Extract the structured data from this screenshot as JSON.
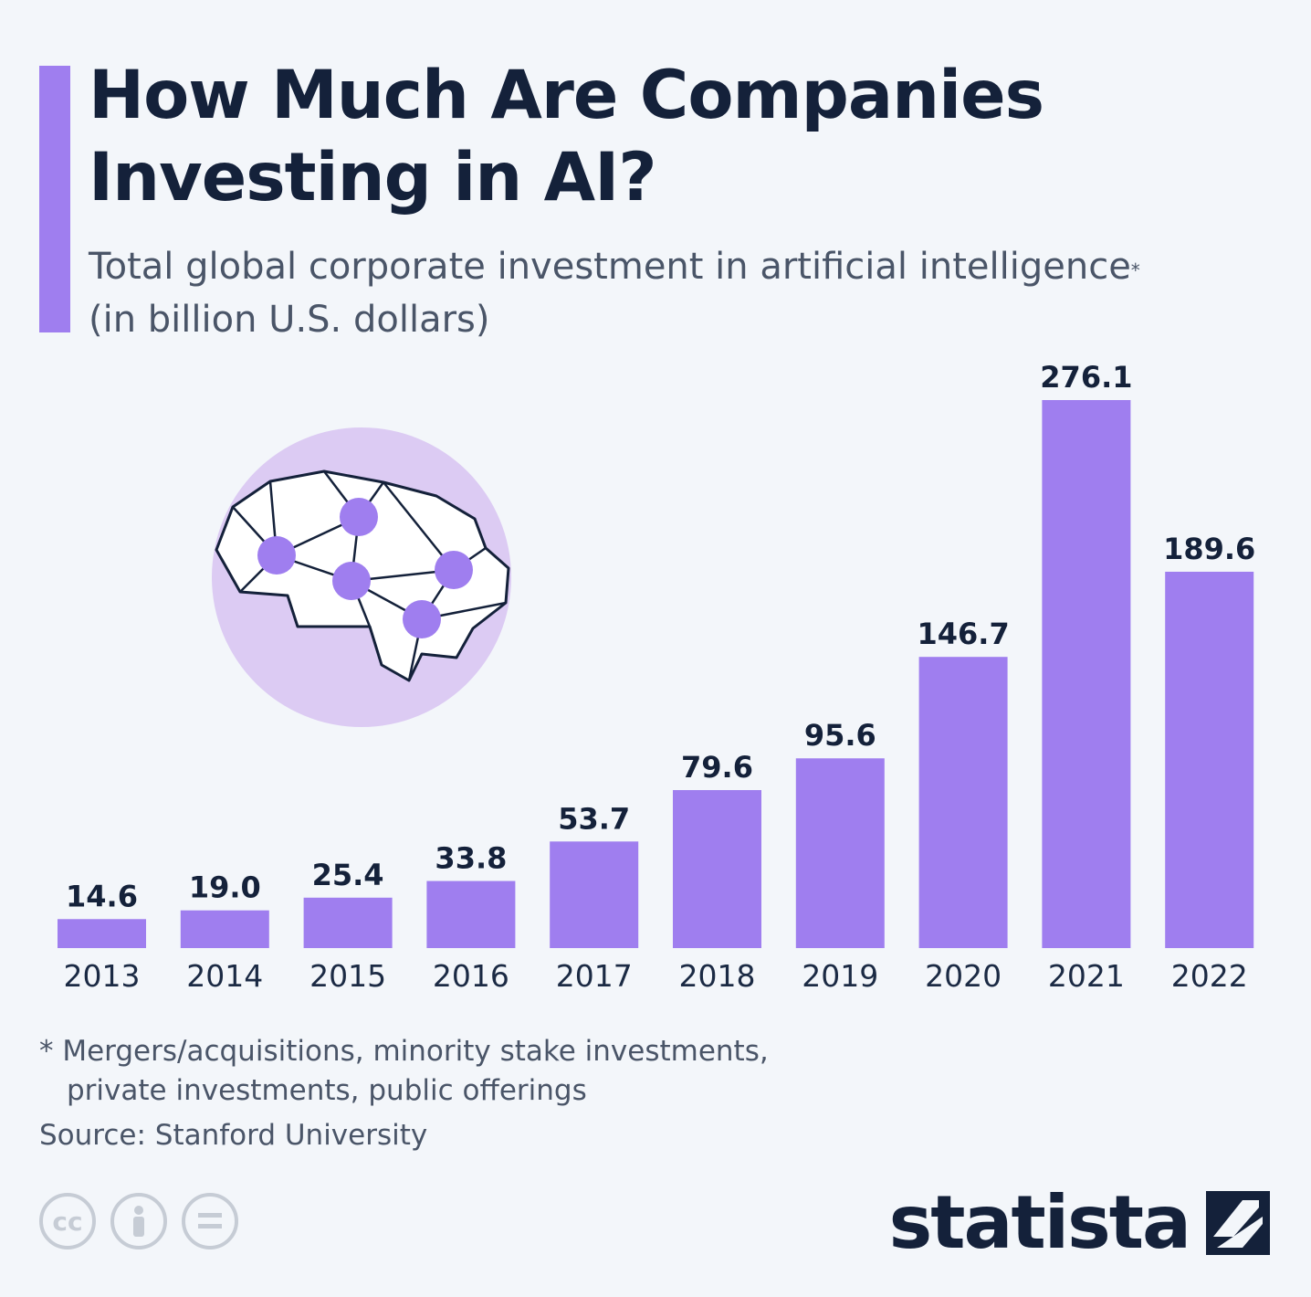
{
  "title": "How Much Are Companies Investing in AI?",
  "subtitle_line1": "Total global corporate investment in artificial intelligence",
  "subtitle_asterisk": "*",
  "subtitle_line2": "(in billion U.S. dollars)",
  "footnote_line1": "* Mergers/acquisitions, minority stake investments,",
  "footnote_line2": "private investments, public offerings",
  "source": "Source: Stanford University",
  "brand": "statista",
  "license_icons": [
    "cc-icon",
    "attribution-icon",
    "no-derivatives-icon"
  ],
  "colors": {
    "bar": "#9f7eef",
    "accent": "#9f7eef",
    "brain_bg": "#dccbf3",
    "text": "#14213a"
  },
  "chart_data": {
    "type": "bar",
    "title": "How Much Are Companies Investing in AI?",
    "xlabel": "",
    "ylabel": "in billion U.S. dollars",
    "categories": [
      "2013",
      "2014",
      "2015",
      "2016",
      "2017",
      "2018",
      "2019",
      "2020",
      "2021",
      "2022"
    ],
    "values": [
      14.6,
      19.0,
      25.4,
      33.8,
      53.7,
      79.6,
      95.6,
      146.7,
      276.1,
      189.6
    ],
    "value_labels": [
      "14.6",
      "19.0",
      "25.4",
      "33.8",
      "53.7",
      "79.6",
      "95.6",
      "146.7",
      "276.1",
      "189.6"
    ],
    "ylim": [
      0,
      276.1
    ],
    "grid": false,
    "legend": "none"
  }
}
